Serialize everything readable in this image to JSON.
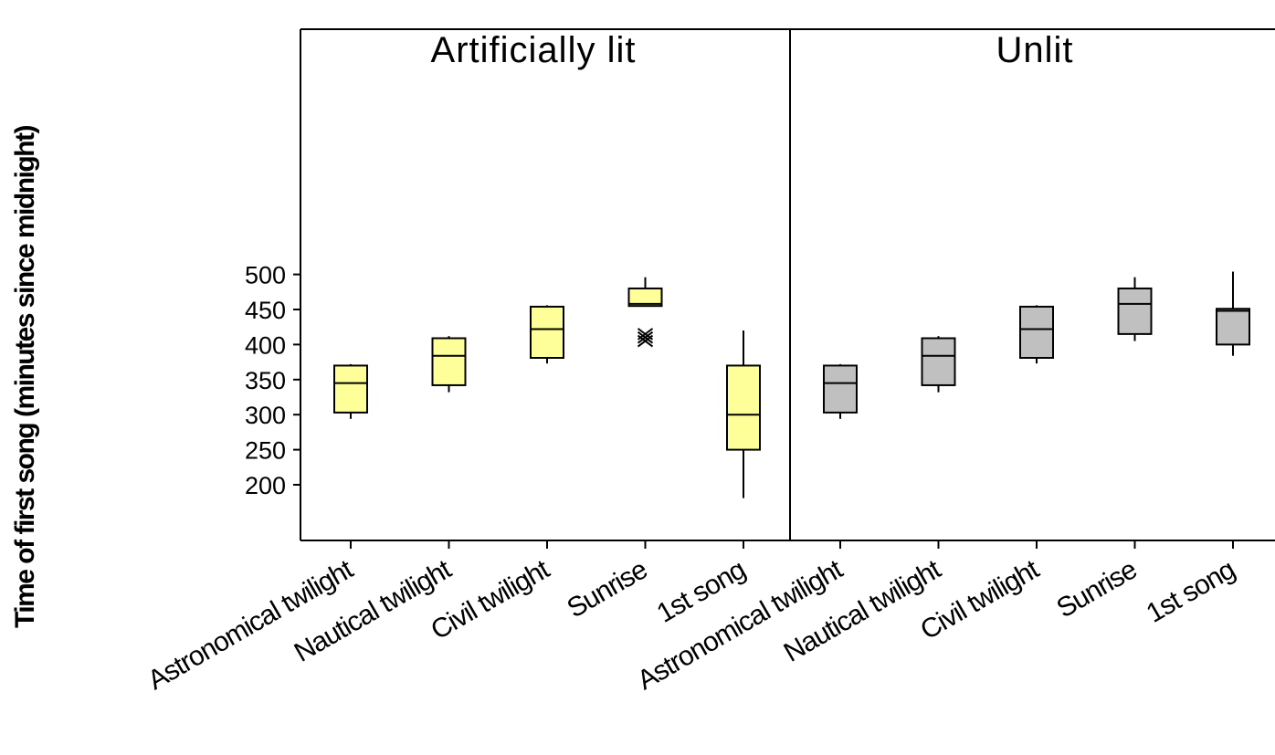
{
  "chart_data": {
    "type": "boxplot",
    "ylabel": "Time of first song (minutes since midnight)",
    "ylim": [
      160,
      525
    ],
    "yticks": [
      200,
      250,
      300,
      350,
      400,
      450,
      500
    ],
    "panels": [
      {
        "name": "Artificially lit",
        "fill": "#ffff99",
        "categories": [
          "Astronomical twilight",
          "Nautical twilight",
          "Civil twilight",
          "Sunrise",
          "1st song"
        ],
        "boxes": [
          {
            "min": 294,
            "q1": 303,
            "median": 345,
            "q3": 370,
            "max": 372,
            "outliers": []
          },
          {
            "min": 332,
            "q1": 342,
            "median": 384,
            "q3": 409,
            "max": 412,
            "outliers": []
          },
          {
            "min": 373,
            "q1": 381,
            "median": 422,
            "q3": 454,
            "max": 456,
            "outliers": []
          },
          {
            "min": 455,
            "q1": 455,
            "median": 458,
            "q3": 480,
            "max": 496,
            "outliers": [
              405,
              410,
              415
            ]
          },
          {
            "min": 181,
            "q1": 250,
            "median": 300,
            "q3": 370,
            "max": 420,
            "outliers": []
          }
        ]
      },
      {
        "name": "Unlit",
        "fill": "#c0c0c0",
        "categories": [
          "Astronomical twilight",
          "Nautical twilight",
          "Civil twilight",
          "Sunrise",
          "1st song"
        ],
        "boxes": [
          {
            "min": 294,
            "q1": 303,
            "median": 345,
            "q3": 370,
            "max": 372,
            "outliers": []
          },
          {
            "min": 332,
            "q1": 342,
            "median": 384,
            "q3": 409,
            "max": 412,
            "outliers": []
          },
          {
            "min": 373,
            "q1": 381,
            "median": 422,
            "q3": 454,
            "max": 456,
            "outliers": []
          },
          {
            "min": 405,
            "q1": 415,
            "median": 458,
            "q3": 480,
            "max": 496,
            "outliers": []
          },
          {
            "min": 384,
            "q1": 400,
            "median": 448,
            "q3": 451,
            "max": 504,
            "outliers": []
          }
        ]
      }
    ]
  }
}
